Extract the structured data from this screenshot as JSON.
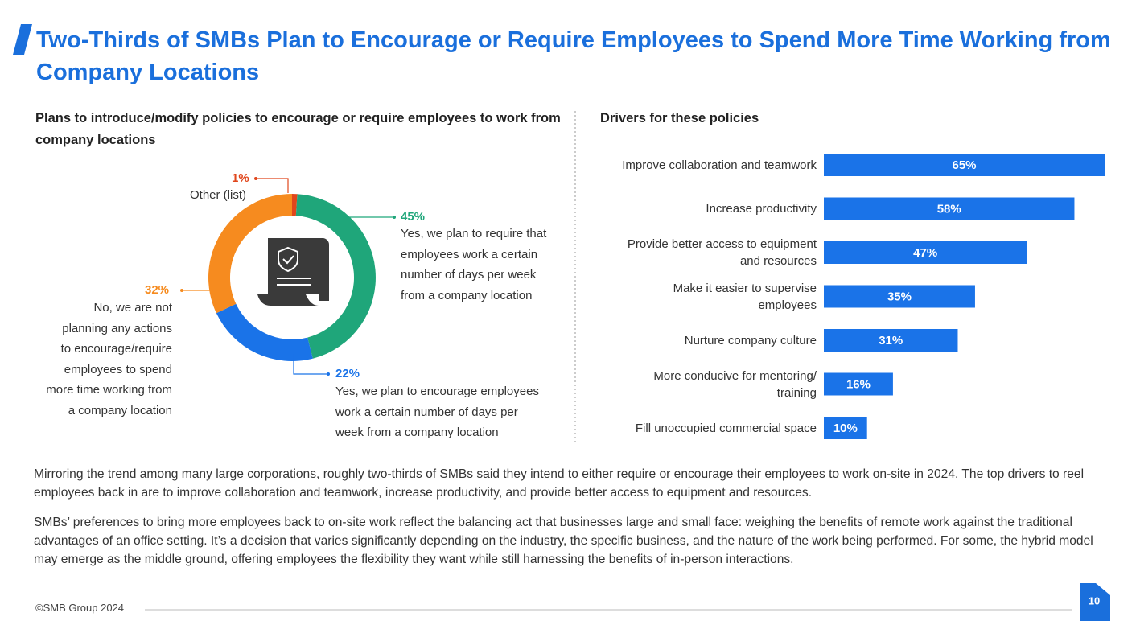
{
  "title": "Two-Thirds of SMBs Plan to Encourage or Require Employees to Spend More Time Working from Company Locations",
  "chart_data": [
    {
      "type": "pie",
      "title": "Plans to introduce/modify policies to encourage or require employees to work from company locations",
      "categories": [
        "Other (list)",
        "Yes, we plan to require that\nemployees work a certain\nnumber of days per week\nfrom a company location",
        "Yes, we plan to encourage employees\nwork a certain number of days per\nweek from a company location",
        "No, we are not\nplanning any actions\nto encourage/require\nemployees to spend\nmore time working from\na company location"
      ],
      "values": [
        1,
        45,
        22,
        32
      ],
      "value_labels": [
        "1%",
        "45%",
        "22%",
        "32%"
      ],
      "colors": [
        "#e0461c",
        "#1fa67a",
        "#1a73e8",
        "#f68b1f"
      ]
    },
    {
      "type": "bar",
      "title": "Drivers for these policies",
      "categories": [
        "Improve collaboration and teamwork",
        "Increase productivity",
        "Provide better access to equipment\nand resources",
        "Make it easier to supervise\nemployees",
        "Nurture company culture",
        "More conducive for mentoring/\ntraining",
        "Fill unoccupied commercial space"
      ],
      "values": [
        65,
        58,
        47,
        35,
        31,
        16,
        10
      ],
      "value_labels": [
        "65%",
        "58%",
        "47%",
        "35%",
        "31%",
        "16%",
        "10%"
      ],
      "color": "#1a73e8"
    }
  ],
  "paragraphs": [
    "Mirroring the trend among many large corporations, roughly two-thirds of SMBs said they intend to either require or encourage their employees to work on-site in 2024. The top drivers to reel employees back in are to improve collaboration and teamwork, increase productivity, and provide better access to equipment and resources.",
    "SMBs’ preferences to bring more employees back to on-site work reflect the balancing act that businesses large and small face: weighing the benefits of remote work against the traditional advantages of an office setting. It’s a decision that varies significantly depending on the industry, the specific business, and the nature of the work being performed. For some, the hybrid model may emerge as the middle ground, offering employees the flexibility they want while still harnessing the benefits of in-person interactions."
  ],
  "footer": "©SMB Group 2024",
  "page_number": "10"
}
